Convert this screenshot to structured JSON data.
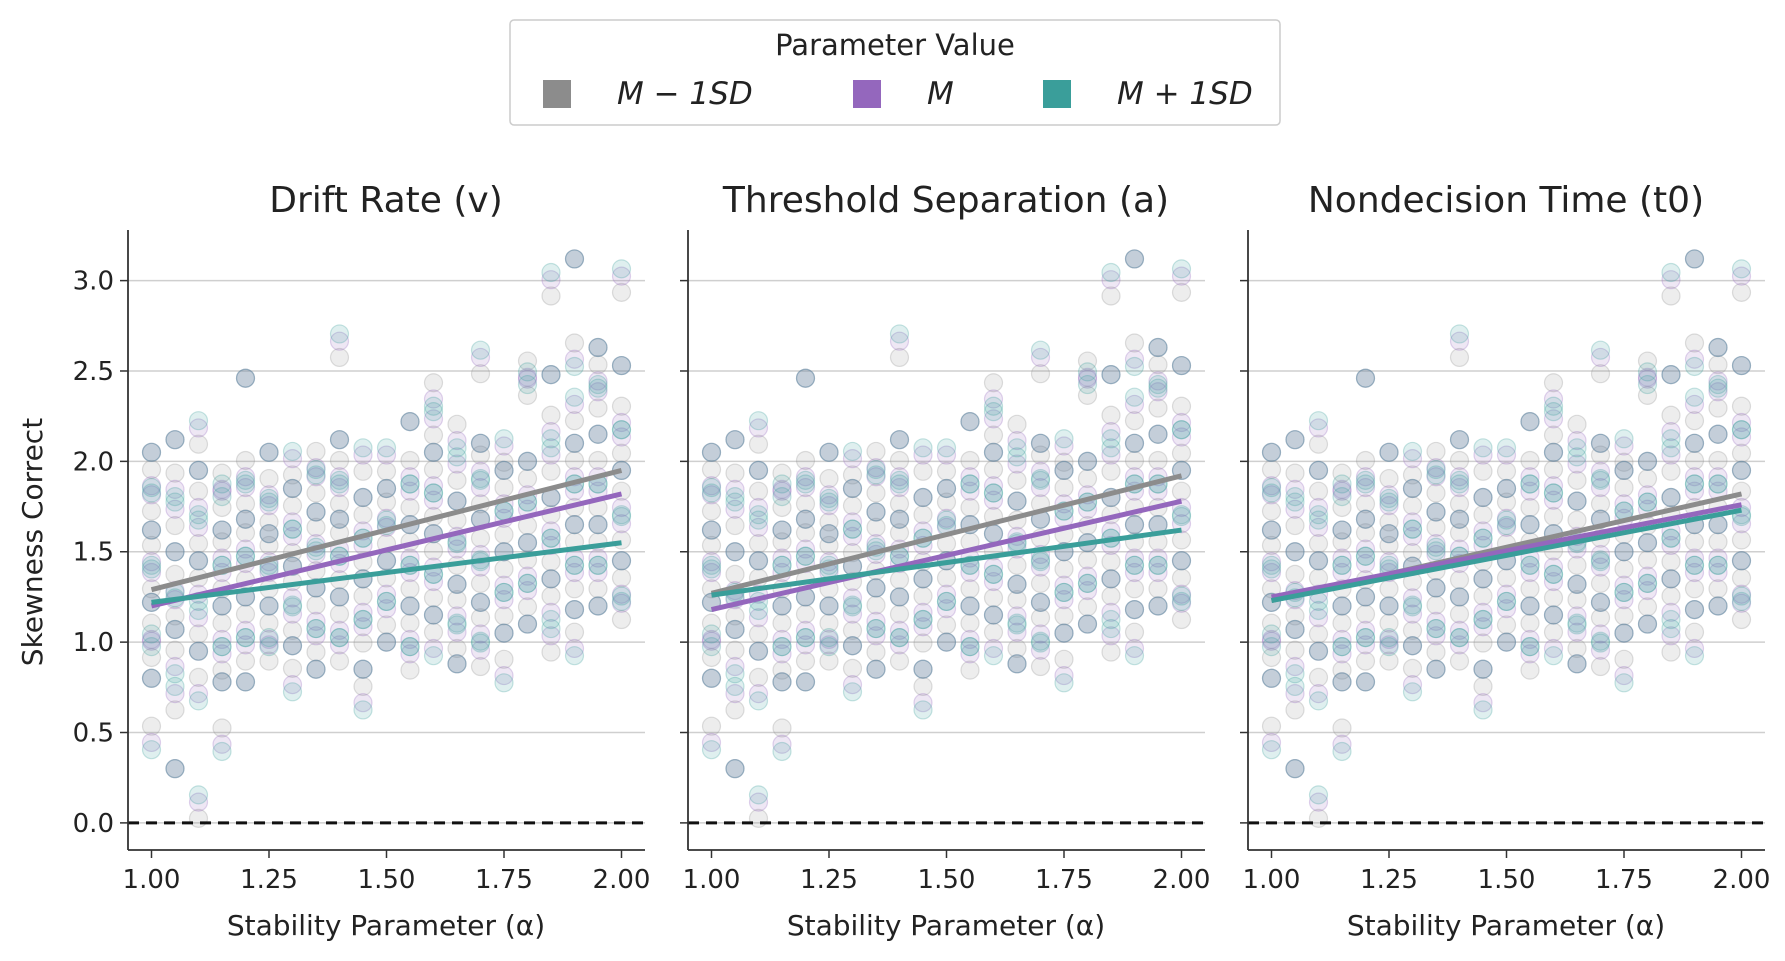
{
  "legend": {
    "title": "Parameter Value",
    "placement": "top-center",
    "entries": [
      {
        "label": "M − 1SD",
        "color": "#8c8c8c"
      },
      {
        "label": "M",
        "color": "#9467bd"
      },
      {
        "label": "M + 1SD",
        "color": "#3a9e9a"
      }
    ]
  },
  "chart_data": [
    {
      "type": "scatter",
      "title": "Drift Rate (v)",
      "xlabel": "Stability Parameter (α)",
      "ylabel": "Skewness Correct",
      "xlim": [
        0.95,
        2.05
      ],
      "ylim": [
        -0.15,
        3.28
      ],
      "xticks": [
        "1.00",
        "1.25",
        "1.50",
        "1.75",
        "2.00"
      ],
      "yticks": [
        "0.0",
        "0.5",
        "1.0",
        "1.5",
        "2.0",
        "2.5",
        "3.0"
      ],
      "grid": "horizontal",
      "reference_line": {
        "y": 0,
        "style": "dashed"
      },
      "series": [
        {
          "name": "M − 1SD",
          "color": "#8c8c8c",
          "fit": [
            [
              1.0,
              1.29
            ],
            [
              2.0,
              1.95
            ]
          ]
        },
        {
          "name": "M",
          "color": "#9467bd",
          "fit": [
            [
              1.0,
              1.2
            ],
            [
              2.0,
              1.82
            ]
          ]
        },
        {
          "name": "M + 1SD",
          "color": "#3a9e9a",
          "fit": [
            [
              1.0,
              1.22
            ],
            [
              2.0,
              1.55
            ]
          ]
        }
      ]
    },
    {
      "type": "scatter",
      "title": "Threshold Separation (a)",
      "xlabel": "Stability Parameter (α)",
      "ylabel": "",
      "xlim": [
        0.95,
        2.05
      ],
      "ylim": [
        -0.15,
        3.28
      ],
      "xticks": [
        "1.00",
        "1.25",
        "1.50",
        "1.75",
        "2.00"
      ],
      "yticks": [
        "0.0",
        "0.5",
        "1.0",
        "1.5",
        "2.0",
        "2.5",
        "3.0"
      ],
      "grid": "horizontal",
      "reference_line": {
        "y": 0,
        "style": "dashed"
      },
      "series": [
        {
          "name": "M − 1SD",
          "color": "#8c8c8c",
          "fit": [
            [
              1.0,
              1.27
            ],
            [
              2.0,
              1.92
            ]
          ]
        },
        {
          "name": "M",
          "color": "#9467bd",
          "fit": [
            [
              1.0,
              1.18
            ],
            [
              2.0,
              1.78
            ]
          ]
        },
        {
          "name": "M + 1SD",
          "color": "#3a9e9a",
          "fit": [
            [
              1.0,
              1.26
            ],
            [
              2.0,
              1.62
            ]
          ]
        }
      ]
    },
    {
      "type": "scatter",
      "title": "Nondecision Time (t0)",
      "xlabel": "Stability Parameter (α)",
      "ylabel": "",
      "xlim": [
        0.95,
        2.05
      ],
      "ylim": [
        -0.15,
        3.28
      ],
      "xticks": [
        "1.00",
        "1.25",
        "1.50",
        "1.75",
        "2.00"
      ],
      "yticks": [
        "0.0",
        "0.5",
        "1.0",
        "1.5",
        "2.0",
        "2.5",
        "3.0"
      ],
      "grid": "horizontal",
      "reference_line": {
        "y": 0,
        "style": "dashed"
      },
      "series": [
        {
          "name": "M − 1SD",
          "color": "#8c8c8c",
          "fit": [
            [
              1.0,
              1.23
            ],
            [
              2.0,
              1.82
            ]
          ]
        },
        {
          "name": "M",
          "color": "#9467bd",
          "fit": [
            [
              1.0,
              1.25
            ],
            [
              2.0,
              1.76
            ]
          ]
        },
        {
          "name": "M + 1SD",
          "color": "#3a9e9a",
          "fit": [
            [
              1.0,
              1.23
            ],
            [
              2.0,
              1.73
            ]
          ]
        }
      ]
    }
  ],
  "scatter_points": {
    "x": [
      1.0,
      1.05,
      1.1,
      1.15,
      1.2,
      1.25,
      1.3,
      1.35,
      1.4,
      1.45,
      1.5,
      1.55,
      1.6,
      1.65,
      1.7,
      1.75,
      1.8,
      1.85,
      1.9,
      1.95,
      2.0
    ],
    "y_by_x": [
      [
        0.48,
        0.8,
        0.97,
        1.05,
        1.22,
        1.35,
        1.48,
        1.62,
        1.78,
        1.9,
        2.05
      ],
      [
        0.3,
        0.68,
        0.9,
        1.07,
        1.2,
        1.32,
        1.5,
        1.7,
        1.88,
        2.12
      ],
      [
        0.08,
        0.75,
        0.95,
        1.1,
        1.3,
        1.45,
        1.6,
        1.78,
        1.95,
        2.15
      ],
      [
        0.47,
        0.78,
        0.9,
        1.05,
        1.2,
        1.35,
        1.5,
        1.62,
        1.8,
        1.88
      ],
      [
        0.78,
        0.95,
        1.1,
        1.25,
        1.4,
        1.55,
        1.68,
        1.82,
        1.95,
        2.46
      ],
      [
        0.95,
        1.05,
        1.2,
        1.35,
        1.48,
        1.6,
        1.72,
        1.85,
        2.05
      ],
      [
        0.8,
        0.98,
        1.12,
        1.28,
        1.42,
        1.55,
        1.7,
        1.85,
        1.98
      ],
      [
        0.85,
        1.0,
        1.15,
        1.3,
        1.45,
        1.58,
        1.72,
        1.88,
        2.0
      ],
      [
        0.95,
        1.1,
        1.25,
        1.4,
        1.55,
        1.68,
        1.82,
        1.95,
        2.12,
        2.63
      ],
      [
        0.7,
        0.85,
        1.05,
        1.2,
        1.35,
        1.5,
        1.65,
        1.8,
        2.0
      ],
      [
        1.0,
        1.15,
        1.3,
        1.45,
        1.6,
        1.72,
        1.85,
        2.0
      ],
      [
        0.9,
        1.05,
        1.2,
        1.35,
        1.5,
        1.65,
        1.8,
        1.95,
        2.22
      ],
      [
        1.0,
        1.15,
        1.3,
        1.45,
        1.6,
        1.75,
        1.9,
        2.05,
        2.2,
        2.38
      ],
      [
        0.88,
        1.02,
        1.18,
        1.32,
        1.48,
        1.62,
        1.78,
        1.95,
        2.15
      ],
      [
        0.92,
        1.08,
        1.22,
        1.38,
        1.52,
        1.68,
        1.82,
        1.98,
        2.1,
        2.54
      ],
      [
        0.85,
        1.05,
        1.2,
        1.35,
        1.5,
        1.65,
        1.8,
        1.95,
        2.05
      ],
      [
        1.1,
        1.25,
        1.4,
        1.55,
        1.7,
        1.85,
        2.0,
        2.42,
        2.5
      ],
      [
        1.0,
        1.2,
        1.35,
        1.5,
        1.65,
        1.8,
        2.0,
        2.2,
        2.48,
        2.97
      ],
      [
        1.0,
        1.18,
        1.35,
        1.5,
        1.65,
        1.8,
        1.95,
        2.1,
        2.28,
        2.6,
        3.12
      ],
      [
        1.2,
        1.35,
        1.5,
        1.65,
        1.8,
        1.95,
        2.15,
        2.35,
        2.48,
        2.63
      ],
      [
        1.18,
        1.3,
        1.45,
        1.62,
        1.78,
        1.95,
        2.1,
        2.25,
        2.53,
        2.99
      ]
    ]
  }
}
